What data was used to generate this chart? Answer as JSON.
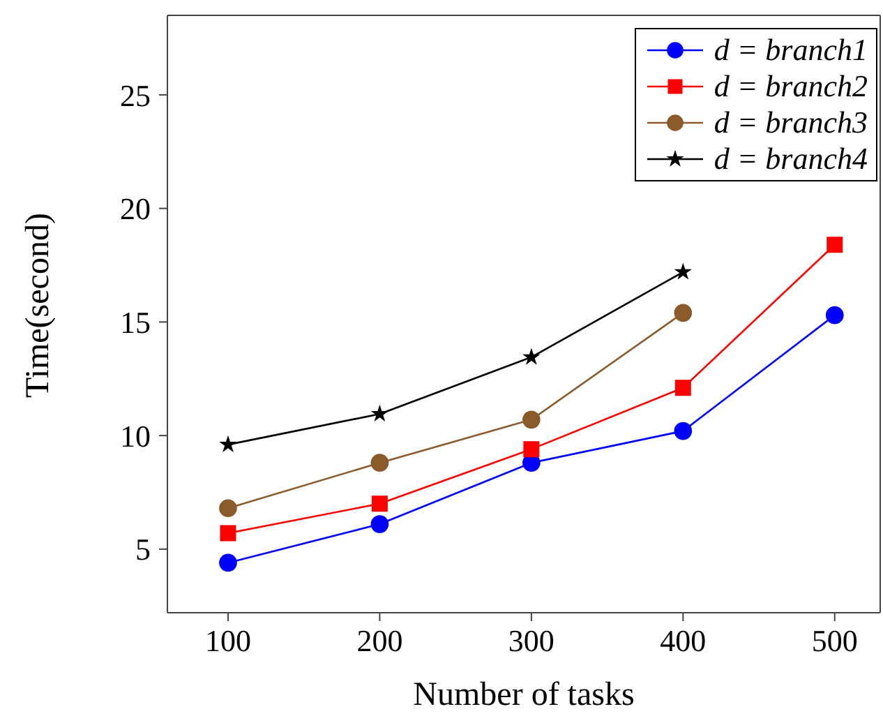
{
  "chart_data": {
    "type": "line",
    "xlabel": "Number of tasks",
    "ylabel": "Time(second)",
    "x": [
      100,
      200,
      300,
      400,
      500
    ],
    "xlim": [
      60,
      530
    ],
    "xticks": [
      100,
      200,
      300,
      400,
      500
    ],
    "ylim": [
      2.2,
      28.5
    ],
    "yticks": [
      5,
      10,
      15,
      20,
      25
    ],
    "grid": false,
    "legend": "top right",
    "line_style": "solid",
    "series": [
      {
        "name": "d = branch1",
        "color": "#0000ff",
        "marker": "circle",
        "values": [
          4.4,
          6.1,
          8.8,
          10.2,
          15.3
        ]
      },
      {
        "name": "d = branch2",
        "color": "#ff0000",
        "marker": "square",
        "values": [
          5.7,
          7.0,
          9.4,
          12.1,
          18.4
        ]
      },
      {
        "name": "d = branch3",
        "color": "#8b5a2b",
        "marker": "circle",
        "values": [
          6.8,
          8.8,
          10.7,
          15.4,
          null
        ]
      },
      {
        "name": "d = branch4",
        "color": "#000000",
        "marker": "star",
        "values": [
          9.6,
          10.95,
          13.45,
          17.2,
          null
        ]
      }
    ]
  }
}
